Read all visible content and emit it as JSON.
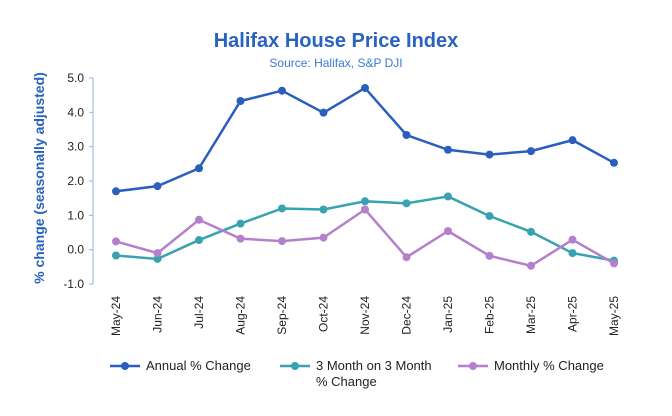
{
  "chart_data": {
    "type": "line",
    "title": "Halifax House Price Index",
    "subtitle": "Source: Halifax, S&P DJI",
    "xlabel": "",
    "ylabel": "% change (seasonally adjusted)",
    "ylim": [
      -1.0,
      5.0
    ],
    "yticks": [
      "5.0",
      "4.0",
      "3.0",
      "2.0",
      "1.0",
      "0.0",
      "-1.0"
    ],
    "grid": false,
    "legend": "bottom",
    "categories": [
      "May-24",
      "Jun-24",
      "Jul-24",
      "Aug-24",
      "Sep-24",
      "Oct-24",
      "Nov-24",
      "Dec-24",
      "Jan-25",
      "Feb-25",
      "Mar-25",
      "Apr-25",
      "May-25"
    ],
    "series": [
      {
        "name": "Annual % Change",
        "color": "#2a5fbf",
        "values": [
          1.7,
          1.85,
          2.37,
          4.33,
          4.63,
          3.99,
          4.71,
          3.34,
          2.91,
          2.77,
          2.87,
          3.19,
          2.53
        ]
      },
      {
        "name": "3 Month on 3 Month % Change",
        "color": "#36a3ae",
        "values": [
          -0.17,
          -0.27,
          0.28,
          0.76,
          1.2,
          1.17,
          1.41,
          1.35,
          1.55,
          0.98,
          0.52,
          -0.1,
          -0.32
        ]
      },
      {
        "name": "Monthly % Change",
        "color": "#b67fcb",
        "values": [
          0.24,
          -0.1,
          0.87,
          0.32,
          0.25,
          0.35,
          1.17,
          -0.22,
          0.54,
          -0.18,
          -0.47,
          0.29,
          -0.4
        ]
      }
    ]
  }
}
